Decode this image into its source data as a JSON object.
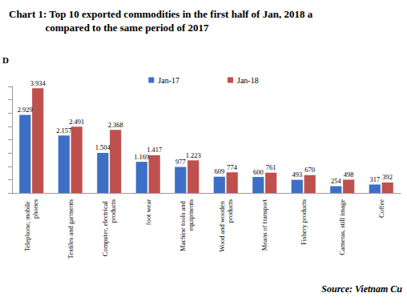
{
  "chart_data": {
    "type": "bar",
    "title": "Chart 1: Top 10 exported commodities in the first half of Jan, 2018 a\n              compared to the same period of 2017",
    "y_label": "D",
    "source": "Source: Vietnam Cu",
    "categories": [
      "Telephone, mobile phones",
      "Textiles and garments",
      "Computer, electrical products",
      "foot wear",
      "Machine tools and equipments",
      "Wood and wooden products",
      "Means of transport",
      "Fishery products",
      "Cameras, still image",
      "Coffee"
    ],
    "series": [
      {
        "name": "Jan-17",
        "color": "#3d6fc6",
        "values": [
          2929,
          2157,
          1504,
          1169,
          977,
          609,
          600,
          493,
          254,
          317
        ],
        "value_labels": [
          "2.929",
          "2.157",
          "1.504",
          "1.169",
          "977",
          "609",
          "600",
          "493",
          "254",
          "317"
        ]
      },
      {
        "name": "Jan-18",
        "color": "#c0504d",
        "values": [
          3934,
          2491,
          2368,
          1417,
          1223,
          774,
          761,
          670,
          498,
          392
        ],
        "value_labels": [
          "3.934",
          "2.491",
          "2.368",
          "1.417",
          "1.223",
          "774",
          "761",
          "670",
          "498",
          "392"
        ]
      }
    ],
    "ylim": [
      0,
      4000
    ],
    "yticks": [
      0,
      500,
      1000,
      1500,
      2000,
      2500,
      3000,
      3500,
      4000
    ],
    "grid": false,
    "legend": "top",
    "data_labels": true,
    "tick_labels": "x"
  }
}
